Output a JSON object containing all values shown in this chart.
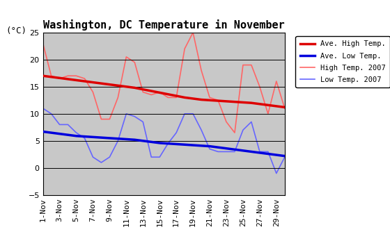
{
  "title": "Washington, DC Temperature in November",
  "unit_label": "(°C)",
  "ylim": [
    -5,
    25
  ],
  "yticks": [
    -5,
    0,
    5,
    10,
    15,
    20,
    25
  ],
  "days": [
    1,
    2,
    3,
    4,
    5,
    6,
    7,
    8,
    9,
    10,
    11,
    12,
    13,
    14,
    15,
    16,
    17,
    18,
    19,
    20,
    21,
    22,
    23,
    24,
    25,
    26,
    27,
    28,
    29,
    30
  ],
  "xlabels": [
    "1-Nov",
    "3-Nov",
    "5-Nov",
    "7-Nov",
    "9-Nov",
    "11-Nov",
    "13-Nov",
    "15-Nov",
    "17-Nov",
    "19-Nov",
    "21-Nov",
    "23-Nov",
    "25-Nov",
    "27-Nov",
    "29-Nov"
  ],
  "xtick_positions": [
    1,
    3,
    5,
    7,
    9,
    11,
    13,
    15,
    17,
    19,
    21,
    23,
    25,
    27,
    29
  ],
  "ave_high": [
    17.0,
    16.8,
    16.6,
    16.4,
    16.2,
    16.0,
    15.8,
    15.6,
    15.4,
    15.2,
    15.0,
    14.8,
    14.5,
    14.2,
    13.9,
    13.6,
    13.3,
    13.0,
    12.8,
    12.6,
    12.5,
    12.4,
    12.3,
    12.2,
    12.1,
    12.0,
    11.8,
    11.6,
    11.4,
    11.2
  ],
  "ave_low": [
    6.7,
    6.5,
    6.3,
    6.1,
    5.9,
    5.8,
    5.7,
    5.6,
    5.5,
    5.4,
    5.3,
    5.2,
    5.0,
    4.8,
    4.6,
    4.5,
    4.4,
    4.3,
    4.2,
    4.1,
    4.0,
    3.8,
    3.6,
    3.4,
    3.2,
    3.0,
    2.8,
    2.6,
    2.4,
    2.2
  ],
  "high_2007": [
    23.0,
    17.0,
    16.5,
    17.0,
    17.0,
    16.5,
    14.0,
    9.0,
    9.0,
    13.0,
    20.5,
    19.5,
    14.0,
    13.5,
    14.0,
    13.0,
    13.0,
    22.0,
    25.0,
    18.0,
    13.0,
    12.5,
    8.5,
    6.5,
    19.0,
    19.0,
    15.0,
    10.0,
    16.0,
    11.0
  ],
  "low_2007": [
    11.0,
    10.0,
    8.0,
    8.0,
    6.5,
    5.5,
    2.0,
    1.0,
    2.0,
    5.0,
    10.0,
    9.5,
    8.5,
    2.0,
    2.0,
    4.5,
    6.5,
    10.0,
    10.0,
    7.0,
    3.5,
    3.0,
    3.0,
    3.0,
    7.0,
    8.5,
    3.0,
    3.0,
    -1.0,
    2.0
  ],
  "ave_high_color": "#dd0000",
  "ave_low_color": "#0000dd",
  "high_2007_color": "#ff6666",
  "low_2007_color": "#6666ff",
  "ave_high_linewidth": 2.5,
  "ave_low_linewidth": 2.5,
  "high_2007_linewidth": 1.2,
  "low_2007_linewidth": 1.2,
  "plot_bg_color": "#c8c8c8",
  "fig_bg_color": "#ffffff",
  "grid_color": "#000000",
  "title_fontsize": 11,
  "tick_fontsize": 8,
  "unit_fontsize": 9
}
